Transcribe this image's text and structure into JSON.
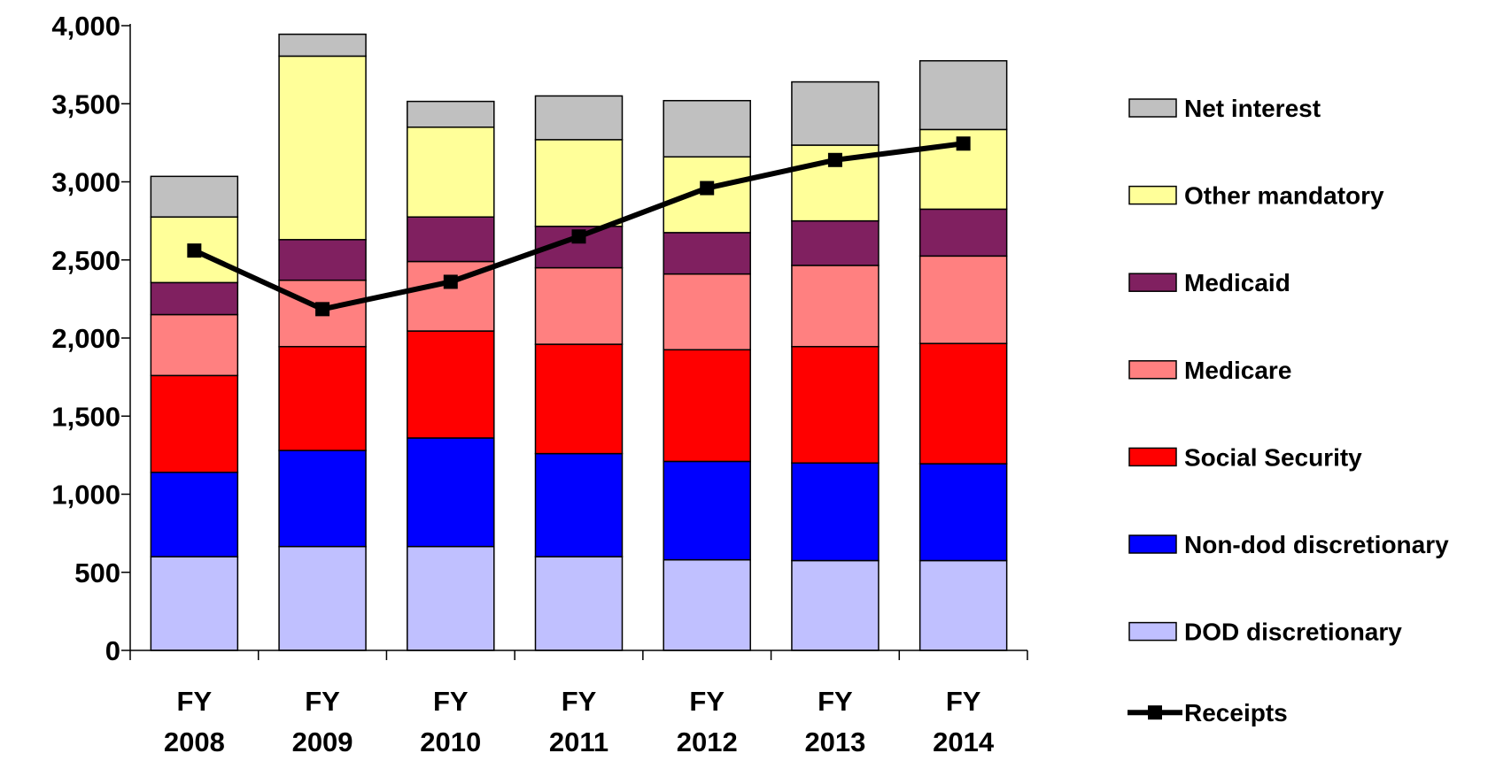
{
  "chart_data": {
    "type": "bar",
    "stacked": true,
    "title": "",
    "xlabel": "",
    "ylabel": "",
    "ylim": [
      0,
      4000
    ],
    "yticks": [
      0,
      500,
      1000,
      1500,
      2000,
      2500,
      3000,
      3500,
      4000
    ],
    "ytick_labels": [
      "0",
      "500",
      "1,000",
      "1,500",
      "2,000",
      "2,500",
      "3,000",
      "3,500",
      "4,000"
    ],
    "grid": false,
    "legend_position": "right",
    "categories": [
      {
        "line1": "FY",
        "line2": "2008"
      },
      {
        "line1": "FY",
        "line2": "2009"
      },
      {
        "line1": "FY",
        "line2": "2010"
      },
      {
        "line1": "FY",
        "line2": "2011"
      },
      {
        "line1": "FY",
        "line2": "2012"
      },
      {
        "line1": "FY",
        "line2": "2013"
      },
      {
        "line1": "FY",
        "line2": "2014"
      }
    ],
    "series": [
      {
        "name": "DOD discretionary",
        "color": "#c0c0ff",
        "values": [
          600,
          665,
          665,
          600,
          580,
          575,
          575
        ]
      },
      {
        "name": "Non-dod discretionary",
        "color": "#0000ff",
        "values": [
          540,
          615,
          695,
          660,
          630,
          625,
          620
        ]
      },
      {
        "name": "Social Security",
        "color": "#ff0000",
        "values": [
          620,
          665,
          685,
          700,
          715,
          745,
          770
        ]
      },
      {
        "name": "Medicare",
        "color": "#ff8080",
        "values": [
          390,
          425,
          445,
          490,
          485,
          520,
          560
        ]
      },
      {
        "name": "Medicaid",
        "color": "#802060",
        "values": [
          205,
          260,
          285,
          265,
          265,
          285,
          300
        ]
      },
      {
        "name": "Other mandatory",
        "color": "#ffff99",
        "values": [
          420,
          1175,
          575,
          555,
          485,
          485,
          510
        ]
      },
      {
        "name": "Net interest",
        "color": "#c0c0c0",
        "values": [
          260,
          140,
          165,
          280,
          360,
          405,
          440
        ]
      }
    ],
    "line_series": {
      "name": "Receipts",
      "color": "#000000",
      "values": [
        2560,
        2185,
        2360,
        2650,
        2960,
        3140,
        3245
      ]
    }
  }
}
